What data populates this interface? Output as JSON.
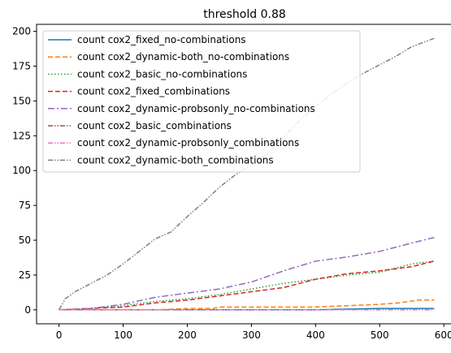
{
  "chart_data": {
    "type": "line",
    "title": "threshold 0.88",
    "xlabel": "",
    "ylabel": "",
    "xlim": [
      -35,
      615
    ],
    "ylim": [
      -10,
      205
    ],
    "xticks": [
      0,
      100,
      200,
      300,
      400,
      500,
      600
    ],
    "yticks": [
      0,
      25,
      50,
      75,
      100,
      125,
      150,
      175,
      200
    ],
    "grid": false,
    "legend_position": "upper left",
    "series": [
      {
        "name": "count cox2_fixed_no-combinations",
        "color": "#1f77b4",
        "dash": "solid",
        "x": [
          0,
          100,
          200,
          300,
          400,
          500,
          585
        ],
        "y": [
          0,
          0,
          0,
          0,
          0,
          1,
          1
        ]
      },
      {
        "name": "count cox2_dynamic-both_no-combinations",
        "color": "#ff7f0e",
        "dash": "dashed",
        "x": [
          0,
          100,
          150,
          200,
          240,
          250,
          300,
          350,
          400,
          450,
          500,
          530,
          560,
          585
        ],
        "y": [
          0,
          0,
          0,
          1,
          1,
          2,
          2,
          2,
          2,
          3,
          4,
          5,
          7,
          7
        ]
      },
      {
        "name": "count cox2_basic_no-combinations",
        "color": "#2ca02c",
        "dash": "dotted",
        "x": [
          0,
          50,
          100,
          150,
          200,
          250,
          300,
          350,
          400,
          450,
          500,
          550,
          585
        ],
        "y": [
          0,
          1,
          3,
          6,
          8,
          11,
          15,
          19,
          22,
          25,
          27,
          33,
          35
        ]
      },
      {
        "name": "count cox2_fixed_combinations",
        "color": "#d62728",
        "dash": "dashed",
        "x": [
          0,
          50,
          100,
          150,
          200,
          250,
          300,
          350,
          400,
          450,
          500,
          550,
          585
        ],
        "y": [
          0,
          1,
          2,
          5,
          7,
          10,
          13,
          16,
          22,
          26,
          28,
          31,
          35
        ]
      },
      {
        "name": "count cox2_dynamic-probsonly_no-combinations",
        "color": "#9467bd",
        "dash": "dashdot",
        "x": [
          0,
          50,
          100,
          150,
          200,
          250,
          300,
          350,
          400,
          450,
          500,
          550,
          585
        ],
        "y": [
          0,
          1,
          4,
          9,
          12,
          15,
          20,
          28,
          35,
          38,
          42,
          48,
          52
        ]
      },
      {
        "name": "count cox2_basic_combinations",
        "color": "#8c564b",
        "dash": "dashdotdot",
        "x": [
          0,
          100,
          200,
          300,
          400,
          500,
          585
        ],
        "y": [
          0,
          0,
          0,
          0,
          0,
          0,
          0
        ]
      },
      {
        "name": "count cox2_dynamic-probsonly_combinations",
        "color": "#e377c2",
        "dash": "dashdotdot",
        "x": [
          0,
          100,
          200,
          300,
          400,
          500,
          585
        ],
        "y": [
          0,
          0,
          0,
          0,
          0,
          0,
          0
        ]
      },
      {
        "name": "count cox2_dynamic-both_combinations",
        "color": "#7f7f7f",
        "dash": "dashdotdot",
        "x": [
          0,
          10,
          25,
          50,
          75,
          100,
          125,
          150,
          175,
          200,
          225,
          250,
          275,
          300,
          325,
          350,
          375,
          400,
          425,
          450,
          475,
          500,
          525,
          550,
          585
        ],
        "y": [
          0,
          8,
          13,
          19,
          25,
          33,
          42,
          51,
          56,
          67,
          77,
          88,
          97,
          104,
          112,
          124,
          136,
          146,
          155,
          163,
          170,
          176,
          182,
          189,
          195
        ]
      }
    ]
  }
}
